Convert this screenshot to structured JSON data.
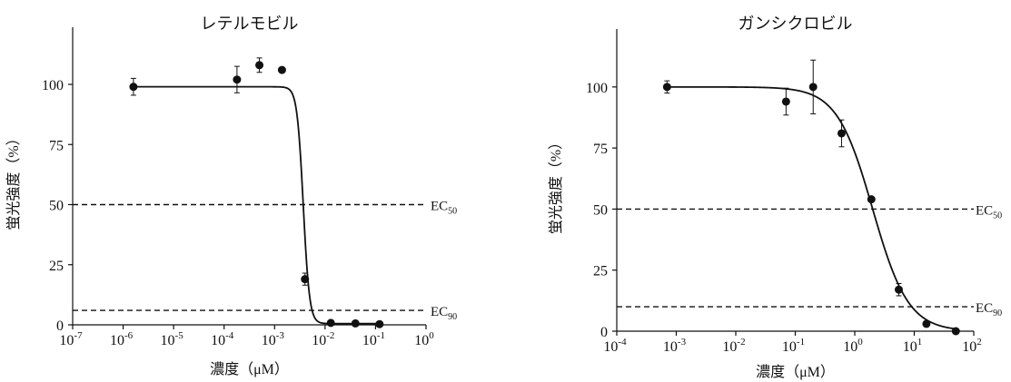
{
  "chart_data": [
    {
      "type": "scatter",
      "title": "レテルモビル",
      "xlabel": "濃度（μM）",
      "ylabel": "蛍光強度（%）",
      "xscale": "log",
      "xlim": [
        1e-07,
        1
      ],
      "ylim": [
        0,
        120
      ],
      "y_ticks": [
        "0",
        "25",
        "50",
        "75",
        "100"
      ],
      "x_ticks": [
        {
          "value": 1e-07,
          "base": "10",
          "exp": "-7"
        },
        {
          "value": 1e-06,
          "base": "10",
          "exp": "-6"
        },
        {
          "value": 1e-05,
          "base": "10",
          "exp": "-5"
        },
        {
          "value": 0.0001,
          "base": "10",
          "exp": "-4"
        },
        {
          "value": 0.001,
          "base": "10",
          "exp": "-3"
        },
        {
          "value": 0.01,
          "base": "10",
          "exp": "-2"
        },
        {
          "value": 0.1,
          "base": "10",
          "exp": "-1"
        },
        {
          "value": 1,
          "base": "10",
          "exp": "0"
        }
      ],
      "points": [
        {
          "x": 1.6e-06,
          "y": 99,
          "err": 3.5
        },
        {
          "x": 0.00018,
          "y": 102,
          "err": 5.5
        },
        {
          "x": 0.0005,
          "y": 108,
          "err": 3.0
        },
        {
          "x": 0.0014,
          "y": 106,
          "err": 0
        },
        {
          "x": 0.004,
          "y": 19,
          "err": 2.5
        },
        {
          "x": 0.013,
          "y": 0.8,
          "err": 0
        },
        {
          "x": 0.04,
          "y": 0.6,
          "err": 0
        },
        {
          "x": 0.12,
          "y": 0.3,
          "err": 0
        }
      ],
      "fit": {
        "top": 99,
        "bottom": 0.5,
        "ec50": 0.0037,
        "hill": 7
      },
      "reference_lines": [
        {
          "y": 50,
          "base": "EC",
          "sub": "50"
        },
        {
          "y": 6,
          "base": "EC",
          "sub": "90"
        }
      ],
      "grid": false,
      "legend": "none"
    },
    {
      "type": "scatter",
      "title": "ガンシクロビル",
      "xlabel": "濃度（μM）",
      "ylabel": "蛍光強度（%）",
      "xscale": "log",
      "xlim": [
        0.0001,
        100
      ],
      "ylim": [
        0,
        120
      ],
      "y_ticks": [
        "0",
        "25",
        "50",
        "75",
        "100"
      ],
      "x_ticks": [
        {
          "value": 0.0001,
          "base": "10",
          "exp": "-4"
        },
        {
          "value": 0.001,
          "base": "10",
          "exp": "-3"
        },
        {
          "value": 0.01,
          "base": "10",
          "exp": "-2"
        },
        {
          "value": 0.1,
          "base": "10",
          "exp": "-1"
        },
        {
          "value": 1,
          "base": "10",
          "exp": "0"
        },
        {
          "value": 10,
          "base": "10",
          "exp": "1"
        },
        {
          "value": 100,
          "base": "10",
          "exp": "2"
        }
      ],
      "points": [
        {
          "x": 0.0007,
          "y": 100,
          "err": 2.5
        },
        {
          "x": 0.07,
          "y": 94,
          "err": 5.5
        },
        {
          "x": 0.2,
          "y": 100,
          "err": 11
        },
        {
          "x": 0.6,
          "y": 81,
          "err": 5.5
        },
        {
          "x": 1.9,
          "y": 54,
          "err": 0
        },
        {
          "x": 5.5,
          "y": 17,
          "err": 2.5
        },
        {
          "x": 16,
          "y": 3,
          "err": 0
        },
        {
          "x": 50,
          "y": 0,
          "err": 0
        }
      ],
      "fit": {
        "top": 100,
        "bottom": 0,
        "ec50": 2.0,
        "hill": 1.45
      },
      "reference_lines": [
        {
          "y": 50,
          "base": "EC",
          "sub": "50"
        },
        {
          "y": 10,
          "base": "EC",
          "sub": "90"
        }
      ],
      "grid": false,
      "legend": "none"
    }
  ]
}
